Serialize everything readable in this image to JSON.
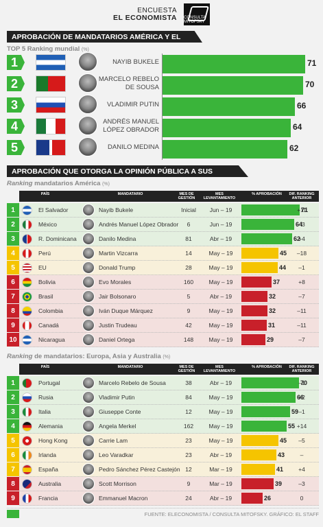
{
  "header": {
    "line1": "ENCUESTA",
    "line2": "EL ECONOMISTA",
    "logo": "CONSULTA MITOFSKY"
  },
  "section1": {
    "title": "APROBACIÓN DE MANDATARIOS AMÉRICA Y EL MUNDO",
    "subtitle": "TOP 5 Ranking mundial",
    "unit": "(%)"
  },
  "section2": {
    "title": "APROBACIÓN QUE OTORGA LA OPINIÓN PÚBLICA A SUS GOBERNANTES",
    "sub_italic": "Ranking",
    "sub_rest": " mandatarios América",
    "unit": "(%)"
  },
  "section3": {
    "sub_italic": "Ranking",
    "sub_rest": " de mandatarios: Europa, Asia y Australia",
    "unit": "(%)"
  },
  "table_headers": {
    "pais": "PAÍS",
    "mandatario": "MANDATARIO",
    "mes_gestion": "MES DE GESTIÓN",
    "mes_lev": "MES LEVANTAMIENTO",
    "aprob": "% APROBACIÓN",
    "dif": "DIF. RANKING ANTERIOR"
  },
  "colors": {
    "green": "#3ab43a",
    "yellow": "#f5c400",
    "red": "#c8202a",
    "green_bg": "#e4f0e0",
    "yellow_bg": "#f8f0da",
    "red_bg": "#f3e0de"
  },
  "chart_data": [
    {
      "type": "bar",
      "title": "TOP 5 Ranking mundial",
      "categories": [
        "NAYIB BUKELE",
        "MARCELO REBELO DE SOUSA",
        "VLADIMIR PUTIN",
        "ANDRÉS MANUEL LÓPEZ OBRADOR",
        "DANILO MEDINA"
      ],
      "values": [
        71,
        70,
        66,
        64,
        62
      ],
      "flags": [
        "El Salvador",
        "Portugal",
        "Rusia",
        "México",
        "R. Dominicana"
      ],
      "ylim": [
        0,
        71
      ]
    },
    {
      "type": "table",
      "title": "Ranking mandatarios América",
      "rows": [
        {
          "rank": "1",
          "pais": "El Salvador",
          "mandatario": "Nayib Bukele",
          "gestion": "Inicial",
          "lev": "Jun – 19",
          "aprob": 71,
          "dif": "+11",
          "level": "green"
        },
        {
          "rank": "2",
          "pais": "México",
          "mandatario": "Andrés Manuel López Obrador",
          "gestion": "6",
          "lev": "Jun – 19",
          "aprob": 64,
          "dif": "–3",
          "level": "green"
        },
        {
          "rank": "3",
          "pais": "R. Dominicana",
          "mandatario": "Danilo Medina",
          "gestion": "81",
          "lev": "Abr – 19",
          "aprob": 62,
          "dif": "+4",
          "level": "green"
        },
        {
          "rank": "4",
          "pais": "Perú",
          "mandatario": "Martin Vizcarra",
          "gestion": "14",
          "lev": "May – 19",
          "aprob": 45,
          "dif": "–18",
          "level": "yellow"
        },
        {
          "rank": "5",
          "pais": "EU",
          "mandatario": "Donald Trump",
          "gestion": "28",
          "lev": "May – 19",
          "aprob": 44,
          "dif": "–1",
          "level": "yellow"
        },
        {
          "rank": "6",
          "pais": "Bolivia",
          "mandatario": "Evo Morales",
          "gestion": "160",
          "lev": "May – 19",
          "aprob": 37,
          "dif": "+8",
          "level": "red"
        },
        {
          "rank": "7",
          "pais": "Brasil",
          "mandatario": "Jair Bolsonaro",
          "gestion": "5",
          "lev": "Abr – 19",
          "aprob": 32,
          "dif": "–7",
          "level": "red"
        },
        {
          "rank": "8",
          "pais": "Colombia",
          "mandatario": "Iván Duque Márquez",
          "gestion": "9",
          "lev": "May – 19",
          "aprob": 32,
          "dif": "–11",
          "level": "red"
        },
        {
          "rank": "9",
          "pais": "Canadá",
          "mandatario": "Justin Trudeau",
          "gestion": "42",
          "lev": "May – 19",
          "aprob": 31,
          "dif": "–11",
          "level": "red"
        },
        {
          "rank": "10",
          "pais": "Nicaragua",
          "mandatario": "Daniel Ortega",
          "gestion": "148",
          "lev": "May – 19",
          "aprob": 29,
          "dif": "–7",
          "level": "red"
        }
      ]
    },
    {
      "type": "table",
      "title": "Ranking de mandatarios: Europa, Asia y Australia",
      "rows": [
        {
          "rank": "1",
          "pais": "Portugal",
          "mandatario": "Marcelo Rebelo de Sousa",
          "gestion": "38",
          "lev": "Abr – 19",
          "aprob": 70,
          "dif": "–1",
          "level": "green"
        },
        {
          "rank": "2",
          "pais": "Rusia",
          "mandatario": "Vladimir Putin",
          "gestion": "84",
          "lev": "May – 19",
          "aprob": 66,
          "dif": "+2",
          "level": "green"
        },
        {
          "rank": "3",
          "pais": "Italia",
          "mandatario": "Giuseppe Conte",
          "gestion": "12",
          "lev": "May – 19",
          "aprob": 59,
          "dif": "–1",
          "level": "green"
        },
        {
          "rank": "4",
          "pais": "Alemania",
          "mandatario": "Angela Merkel",
          "gestion": "162",
          "lev": "May – 19",
          "aprob": 55,
          "dif": "+14",
          "level": "green"
        },
        {
          "rank": "5",
          "pais": "Hong Kong",
          "mandatario": "Carrie Lam",
          "gestion": "23",
          "lev": "May – 19",
          "aprob": 45,
          "dif": "–5",
          "level": "yellow"
        },
        {
          "rank": "6",
          "pais": "Irlanda",
          "mandatario": "Leo Varadkar",
          "gestion": "23",
          "lev": "Abr – 19",
          "aprob": 43,
          "dif": "–",
          "level": "yellow"
        },
        {
          "rank": "7",
          "pais": "España",
          "mandatario": "Pedro Sánchez Pérez Castejón",
          "gestion": "12",
          "lev": "Mar – 19",
          "aprob": 41,
          "dif": "+4",
          "level": "yellow"
        },
        {
          "rank": "8",
          "pais": "Australia",
          "mandatario": "Scott Morrison",
          "gestion": "9",
          "lev": "Mar – 19",
          "aprob": 39,
          "dif": "–3",
          "level": "red"
        },
        {
          "rank": "9",
          "pais": "Francia",
          "mandatario": "Emmanuel Macron",
          "gestion": "24",
          "lev": "Abr – 19",
          "aprob": 26,
          "dif": "0",
          "level": "red"
        }
      ]
    }
  ],
  "footer": "FUENTE: ELECONOMISTA / CONSULTA MITOFSKY. GRÁFICO: EL STAFF"
}
